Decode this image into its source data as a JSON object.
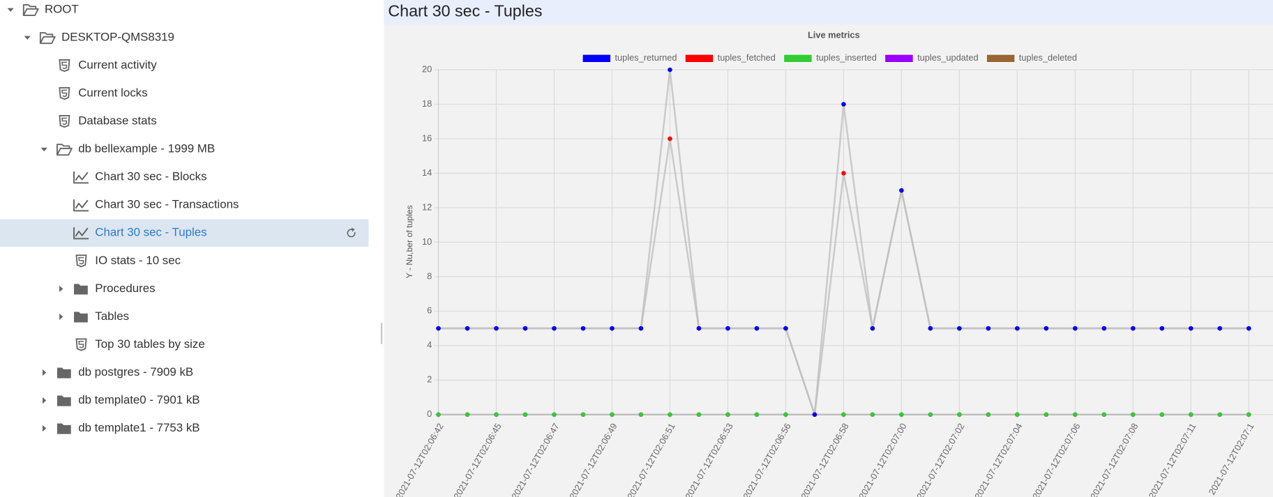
{
  "sidebar": {
    "tree": {
      "label": "ROOT",
      "children": [
        {
          "label": "DESKTOP-QMS8319",
          "children": [
            {
              "label": "Current activity"
            },
            {
              "label": "Current locks"
            },
            {
              "label": "Database stats"
            },
            {
              "label": "db bellexample - 1999 MB",
              "children": [
                {
                  "label": "Chart 30 sec - Blocks"
                },
                {
                  "label": "Chart 30 sec - Transactions"
                },
                {
                  "label": "Chart 30 sec - Tuples"
                },
                {
                  "label": "IO stats - 10 sec"
                },
                {
                  "label": "Procedures"
                },
                {
                  "label": "Tables"
                },
                {
                  "label": "Top 30 tables by size"
                }
              ]
            },
            {
              "label": "db postgres - 7909 kB"
            },
            {
              "label": "db template0 - 7901 kB"
            },
            {
              "label": "db template1 - 7753 kB"
            }
          ]
        }
      ]
    }
  },
  "header": {
    "title": "Chart 30 sec - Tuples"
  },
  "chart_data": {
    "type": "line",
    "title": "Live metrics",
    "y_label": "Y - Nu,ber of tuples",
    "categories": [
      "2021-07-12T02:06:42",
      null,
      "2021-07-12T02:06:45",
      null,
      "2021-07-12T02:06:47",
      null,
      "2021-07-12T02:06:49",
      null,
      "2021-07-12T02:06:51",
      null,
      "2021-07-12T02:06:53",
      null,
      "2021-07-12T02:06:56",
      null,
      "2021-07-12T02:06:58",
      null,
      "2021-07-12T02:07:00",
      null,
      "2021-07-12T02:07:02",
      null,
      "2021-07-12T02:07:04",
      null,
      "2021-07-12T02:07:06",
      null,
      "2021-07-12T02:07:08",
      null,
      "2021-07-12T02:07:11",
      null,
      "2021-07-12T02:07:1"
    ],
    "series": [
      {
        "name": "tuples_returned",
        "color": "#0000ff",
        "values": [
          5,
          5,
          5,
          5,
          5,
          5,
          5,
          5,
          20,
          5,
          5,
          5,
          5,
          0,
          18,
          5,
          13,
          5,
          5,
          5,
          5,
          5,
          5,
          5,
          5,
          5,
          5,
          5,
          5
        ]
      },
      {
        "name": "tuples_fetched",
        "color": "#ff0000",
        "values": [
          5,
          5,
          5,
          5,
          5,
          5,
          5,
          5,
          16,
          5,
          5,
          5,
          5,
          0,
          14,
          5,
          13,
          5,
          5,
          5,
          5,
          5,
          5,
          5,
          5,
          5,
          5,
          5,
          5
        ]
      },
      {
        "name": "tuples_inserted",
        "color": "#33cc33",
        "values": [
          0,
          0,
          0,
          0,
          0,
          0,
          0,
          0,
          0,
          0,
          0,
          0,
          0,
          0,
          0,
          0,
          0,
          0,
          0,
          0,
          0,
          0,
          0,
          0,
          0,
          0,
          0,
          0,
          0
        ]
      },
      {
        "name": "tuples_updated",
        "color": "#9900ff",
        "values": [
          0,
          0,
          0,
          0,
          0,
          0,
          0,
          0,
          0,
          0,
          0,
          0,
          0,
          0,
          0,
          0,
          0,
          0,
          0,
          0,
          0,
          0,
          0,
          0,
          0,
          0,
          0,
          0,
          0
        ]
      },
      {
        "name": "tuples_deleted",
        "color": "#996633",
        "values": [
          0,
          0,
          0,
          0,
          0,
          0,
          0,
          0,
          0,
          0,
          0,
          0,
          0,
          0,
          0,
          0,
          0,
          0,
          0,
          0,
          0,
          0,
          0,
          0,
          0,
          0,
          0,
          0,
          0
        ]
      }
    ],
    "line_color": "#bdbdbd",
    "ylim": [
      0,
      20
    ],
    "yticks": [
      0,
      2,
      4,
      6,
      8,
      10,
      12,
      14,
      16,
      18,
      20
    ],
    "grid": true,
    "legend": "top"
  }
}
